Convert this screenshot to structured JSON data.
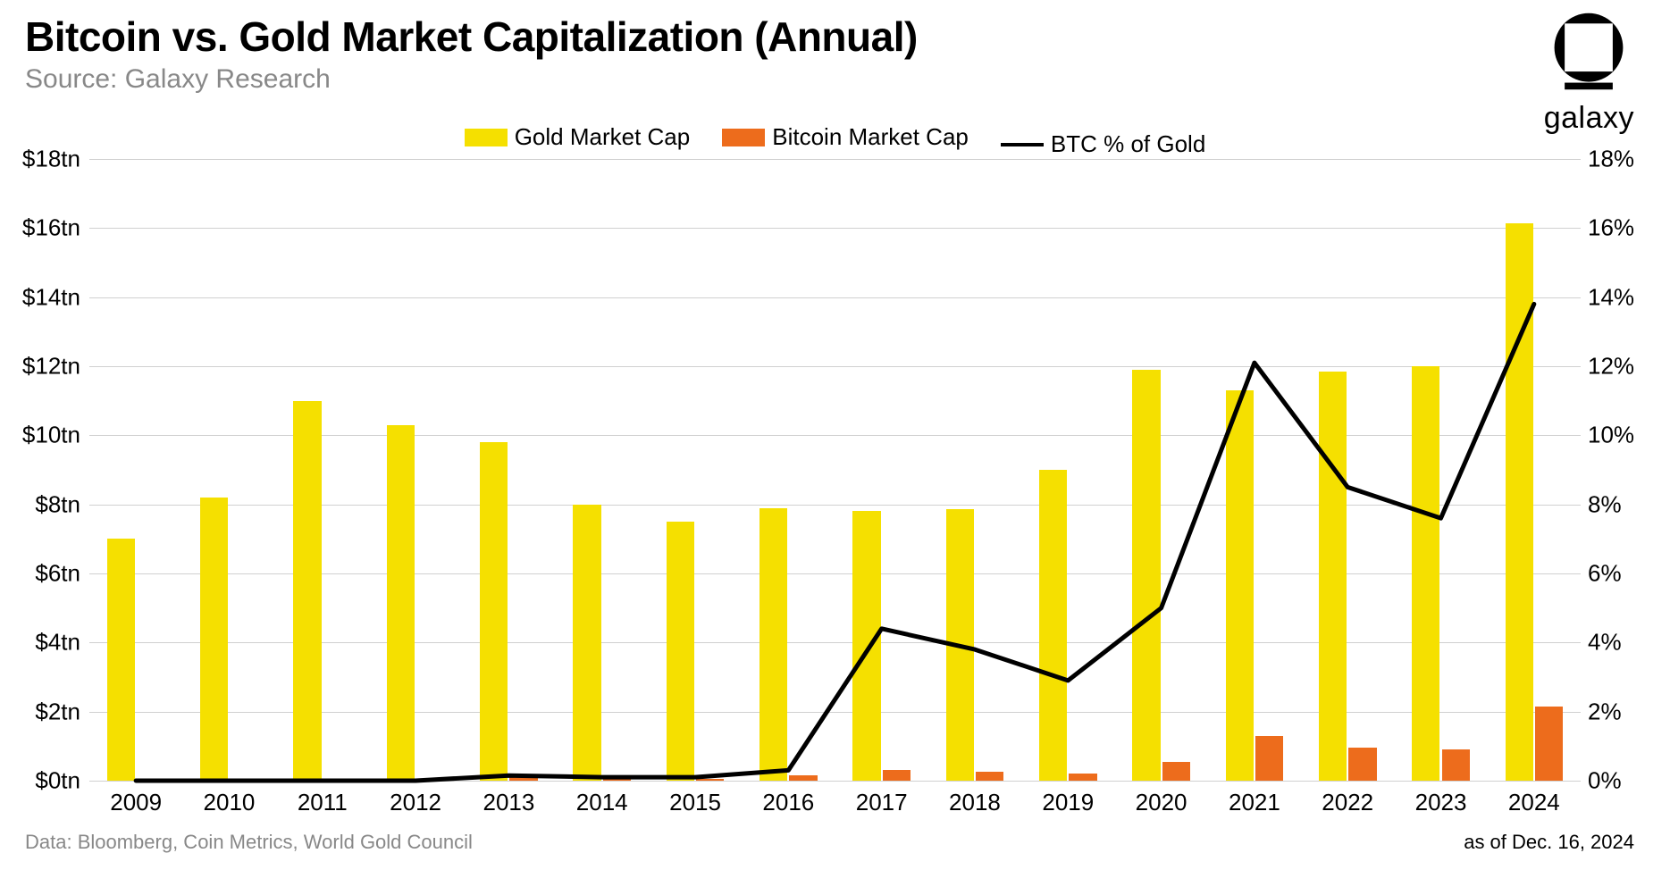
{
  "header": {
    "title": "Bitcoin vs. Gold Market Capitalization (Annual)",
    "subtitle": "Source: Galaxy Research"
  },
  "brand": {
    "text": "galaxy"
  },
  "legend": {
    "items": [
      {
        "label": "Gold Market Cap",
        "color": "#f5e000",
        "type": "swatch"
      },
      {
        "label": "Bitcoin Market Cap",
        "color": "#ed6c1c",
        "type": "swatch"
      },
      {
        "label": "BTC % of Gold",
        "color": "#000000",
        "type": "line"
      }
    ]
  },
  "chart": {
    "type": "bar+line",
    "background_color": "#ffffff",
    "grid_color": "#d0d0d0",
    "categories": [
      "2009",
      "2010",
      "2011",
      "2012",
      "2013",
      "2014",
      "2015",
      "2016",
      "2017",
      "2018",
      "2019",
      "2020",
      "2021",
      "2022",
      "2023",
      "2024"
    ],
    "y_left": {
      "min": 0,
      "max": 18,
      "step": 2,
      "labels": [
        "$0tn",
        "$2tn",
        "$4tn",
        "$6tn",
        "$8tn",
        "$10tn",
        "$12tn",
        "$14tn",
        "$16tn",
        "$18tn"
      ]
    },
    "y_right": {
      "min": 0,
      "max": 18,
      "step": 2,
      "labels": [
        "0%",
        "2%",
        "4%",
        "6%",
        "8%",
        "10%",
        "12%",
        "14%",
        "16%",
        "18%"
      ]
    },
    "series": {
      "gold": {
        "color": "#f5e000",
        "values": [
          7.0,
          8.2,
          11.0,
          10.3,
          9.8,
          8.0,
          7.5,
          7.9,
          7.8,
          7.85,
          9.0,
          11.9,
          11.3,
          11.85,
          12.0,
          16.15
        ]
      },
      "bitcoin": {
        "color": "#ed6c1c",
        "values": [
          0.0,
          0.0,
          0.0,
          0.0,
          0.15,
          0.05,
          0.05,
          0.15,
          0.3,
          0.25,
          0.2,
          0.55,
          1.3,
          0.95,
          0.9,
          2.15
        ]
      },
      "btc_pct": {
        "color": "#000000",
        "line_width": 5,
        "values": [
          0.0,
          0.0,
          0.0,
          0.0,
          0.15,
          0.1,
          0.1,
          0.3,
          4.4,
          3.8,
          2.9,
          5.0,
          12.1,
          8.5,
          7.6,
          13.8
        ]
      }
    },
    "bar_group_width": 0.62,
    "bar_gap": 0.02,
    "title_fontsize": 46,
    "subtitle_fontsize": 30,
    "tick_fontsize": 26,
    "legend_fontsize": 26
  },
  "footer": {
    "left": "Data: Bloomberg, Coin Metrics, World Gold Council",
    "right": "as of Dec. 16, 2024"
  }
}
